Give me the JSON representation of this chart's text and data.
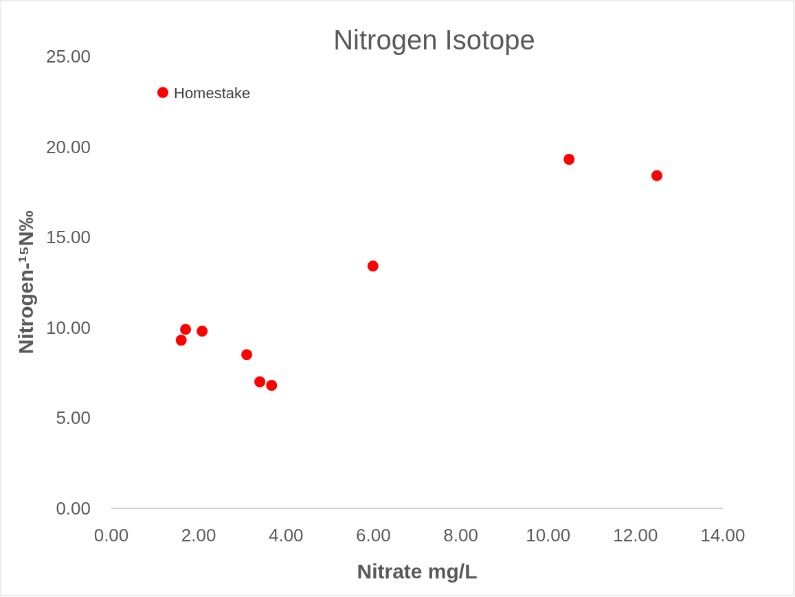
{
  "chart_data": {
    "type": "scatter",
    "title": "Nitrogen Isotope",
    "xlabel": "Nitrate mg/L",
    "ylabel": "Nitrogen-¹⁵N‰",
    "x": [
      1.18,
      1.6,
      1.7,
      2.08,
      3.1,
      3.4,
      3.67,
      5.99,
      10.48,
      12.49
    ],
    "values": [
      23.0,
      9.3,
      9.9,
      9.8,
      8.5,
      7.0,
      6.8,
      13.4,
      19.3,
      18.4
    ],
    "color": "#ff0000",
    "marker": "circle",
    "xlim": [
      0,
      14
    ],
    "xticks": [
      {
        "value": 0,
        "label": "0.00"
      },
      {
        "value": 2,
        "label": "2.00"
      },
      {
        "value": 4,
        "label": "4.00"
      },
      {
        "value": 6,
        "label": "6.00"
      },
      {
        "value": 8,
        "label": "8.00"
      },
      {
        "value": 10,
        "label": "10.00"
      },
      {
        "value": 12,
        "label": "12.00"
      },
      {
        "value": 14,
        "label": "14.00"
      }
    ],
    "ylim": [
      0,
      25
    ],
    "yticks": [
      {
        "value": 0,
        "label": "0.00"
      },
      {
        "value": 5,
        "label": "5.00"
      },
      {
        "value": 10,
        "label": "10.00"
      },
      {
        "value": 15,
        "label": "15.00"
      },
      {
        "value": 20,
        "label": "20.00"
      },
      {
        "value": 25,
        "label": "25.00"
      }
    ],
    "annotations": [
      {
        "text": "Homestake",
        "x": 1.18,
        "y": 23.0
      }
    ]
  }
}
